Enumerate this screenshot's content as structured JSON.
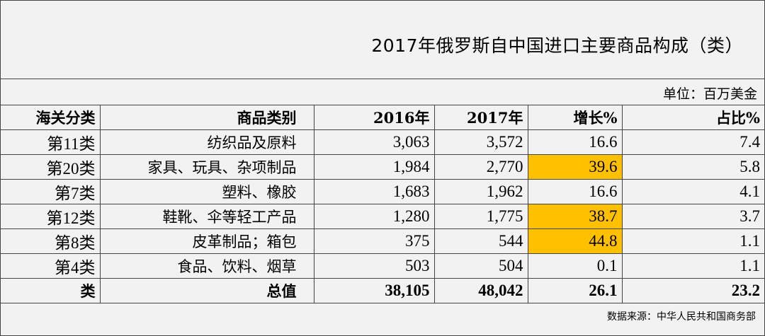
{
  "title": "2017年俄罗斯自中国进口主要商品构成（类）",
  "unit": "单位：百万美金",
  "table": {
    "headers": [
      "海关分类",
      "商品类别",
      "2016年",
      "2017年",
      "增长%",
      "占比%"
    ],
    "rows": [
      {
        "code": "第11类",
        "category": "纺织品及原料",
        "y2016": "3,063",
        "y2017": "3,572",
        "growth": "16.6",
        "share": "7.4",
        "highlight": false
      },
      {
        "code": "第20类",
        "category": "家具、玩具、杂项制品",
        "y2016": "1,984",
        "y2017": "2,770",
        "growth": "39.6",
        "share": "5.8",
        "highlight": true
      },
      {
        "code": "第7类",
        "category": "塑料、橡胶",
        "y2016": "1,683",
        "y2017": "1,962",
        "growth": "16.6",
        "share": "4.1",
        "highlight": false
      },
      {
        "code": "第12类",
        "category": "鞋靴、伞等轻工产品",
        "y2016": "1,280",
        "y2017": "1,775",
        "growth": "38.7",
        "share": "3.7",
        "highlight": true
      },
      {
        "code": "第8类",
        "category": "皮革制品；箱包",
        "y2016": "375",
        "y2017": "544",
        "growth": "44.8",
        "share": "1.1",
        "highlight": true
      },
      {
        "code": "第4类",
        "category": "食品、饮料、烟草",
        "y2016": "503",
        "y2017": "504",
        "growth": "0.1",
        "share": "1.1",
        "highlight": false
      }
    ],
    "total": {
      "code": "类",
      "category": "总值",
      "y2016": "38,105",
      "y2017": "48,042",
      "growth": "26.1",
      "share": "23.2"
    }
  },
  "source": "数据来源：中华人民共和国商务部",
  "colors": {
    "highlight": "#ffc000",
    "background": "#f2f2f2",
    "border": "#444444"
  }
}
